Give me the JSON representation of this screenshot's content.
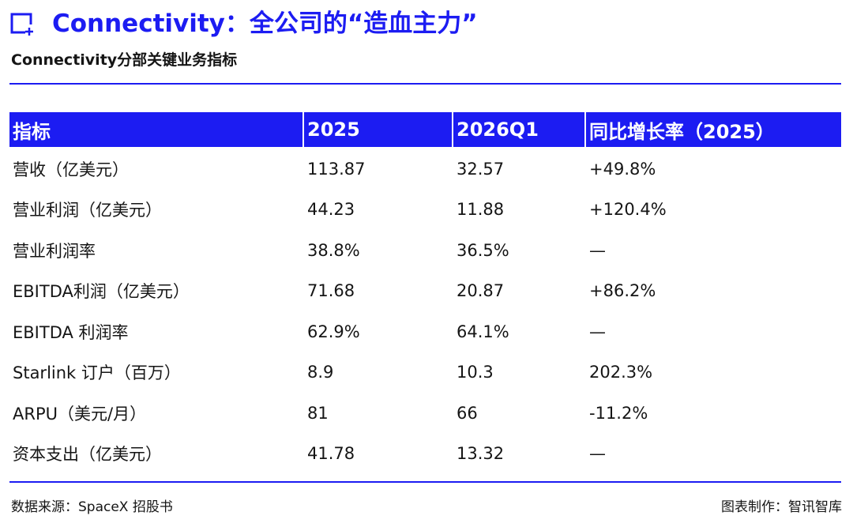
{
  "header": {
    "title": "Connectivity：全公司的“造血主力”",
    "subtitle": "Connectivity分部关键业务指标"
  },
  "table": {
    "columns": [
      "指标",
      "2025",
      "2026Q1",
      "同比增长率（2025）"
    ],
    "rows": [
      [
        "营收（亿美元）",
        "113.87",
        "32.57",
        "+49.8%"
      ],
      [
        "营业利润（亿美元）",
        "44.23",
        "11.88",
        "+120.4%"
      ],
      [
        "营业利润率",
        "38.8%",
        "36.5%",
        "—"
      ],
      [
        "EBITDA利润（亿美元）",
        "71.68",
        "20.87",
        "+86.2%"
      ],
      [
        "EBITDA 利润率",
        "62.9%",
        "64.1%",
        "—"
      ],
      [
        "Starlink 订户（百万）",
        "8.9",
        "10.3",
        "202.3%"
      ],
      [
        "ARPU（美元/月）",
        "81",
        "66",
        "-11.2%"
      ],
      [
        "资本支出（亿美元）",
        "41.78",
        "13.32",
        "—"
      ]
    ]
  },
  "footer": {
    "source": "数据来源：SpaceX 招股书",
    "credit": "图表制作：智讯智库"
  }
}
